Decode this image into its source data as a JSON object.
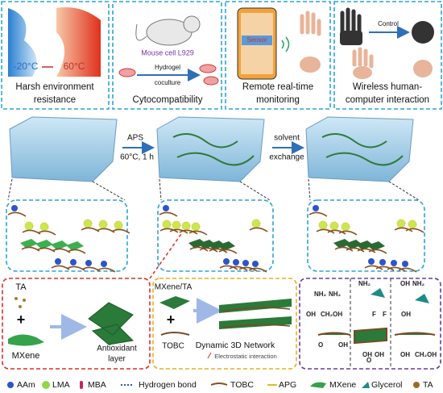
{
  "panels": [
    {
      "labels": [
        "-20°C",
        "60°C"
      ],
      "caption": [
        "Harsh environment",
        "resistance"
      ]
    },
    {
      "labels": [
        "Mouse cell L929",
        "Hydrogel",
        "coculture"
      ],
      "caption": [
        "Cytocompatibility"
      ]
    },
    {
      "labels": [
        "Sensor"
      ],
      "caption": [
        "Remote real-time",
        "monitoring"
      ]
    },
    {
      "labels": [
        "Control"
      ],
      "caption": [
        "Wireless human-",
        "computer interaction"
      ]
    }
  ],
  "process": {
    "step1": [
      "APS",
      "60°C, 1 h"
    ],
    "step2": [
      "solvent",
      "exchange"
    ]
  },
  "details": {
    "antioxidant": {
      "reactant1": "TA",
      "plus": "+",
      "reactant2": "MXene",
      "product": [
        "Antioxidant",
        "layer"
      ]
    },
    "network": {
      "reactant1": "MXene/TA",
      "plus": "+",
      "reactant2": "TOBC",
      "product": "Dynamic 3D Network",
      "note": "Electrostatic interaction"
    },
    "chemistry": [
      "NH₂",
      "NH₂",
      "OH",
      "CH₂OH",
      "O",
      "OH",
      "NH₂",
      "F",
      "F",
      "OH",
      "OH",
      "O",
      "OH",
      "NH₂",
      "OH",
      "OH",
      "CH₂OH"
    ]
  },
  "legend": [
    "AAm",
    "LMA",
    "MBA",
    "Hydrogen bond",
    "TOBC",
    "APG",
    "MXene",
    "Glycerol",
    "TA"
  ]
}
